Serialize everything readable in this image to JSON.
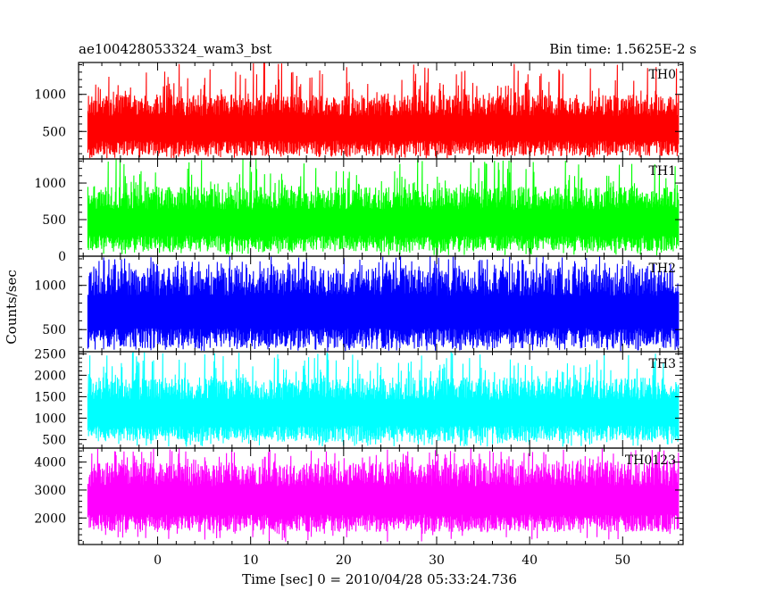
{
  "header": {
    "left_title": "ae100428053324_wam3_bst",
    "right_title": "Bin time: 1.5625E-2 s"
  },
  "chart_data": {
    "type": "line",
    "ylabel": "Counts/sec",
    "xlabel": "Time [sec] 0 = 2010/04/28 05:33:24.736",
    "xlim": [
      -8.5,
      56.5
    ],
    "data_x_range": [
      -7.5,
      56
    ],
    "x_ticks": [
      0,
      10,
      20,
      30,
      40,
      50
    ],
    "grid": false,
    "panels": [
      {
        "name": "TH0",
        "color": "#ff0000",
        "ylim": [
          130,
          1430
        ],
        "y_ticks": [
          500,
          1000
        ],
        "typical_range": [
          170,
          1000
        ],
        "peak": 1430
      },
      {
        "name": "TH1",
        "color": "#00ff00",
        "ylim": [
          0,
          1330
        ],
        "y_ticks": [
          0,
          500,
          1000
        ],
        "typical_range": [
          60,
          950
        ],
        "peak": 1330
      },
      {
        "name": "TH2",
        "color": "#0000ff",
        "ylim": [
          250,
          1330
        ],
        "y_ticks": [
          500,
          1000
        ],
        "typical_range": [
          290,
          1200
        ],
        "peak": 1330
      },
      {
        "name": "TH3",
        "color": "#00ffff",
        "ylim": [
          300,
          2550
        ],
        "y_ticks": [
          500,
          1000,
          1500,
          2000,
          2500
        ],
        "typical_range": [
          450,
          1950
        ],
        "peak": 2550
      },
      {
        "name": "TH0123",
        "color": "#ff00ff",
        "ylim": [
          1050,
          4500
        ],
        "y_ticks": [
          2000,
          3000,
          4000
        ],
        "typical_range": [
          1500,
          4000
        ],
        "peak": 4500
      }
    ]
  }
}
